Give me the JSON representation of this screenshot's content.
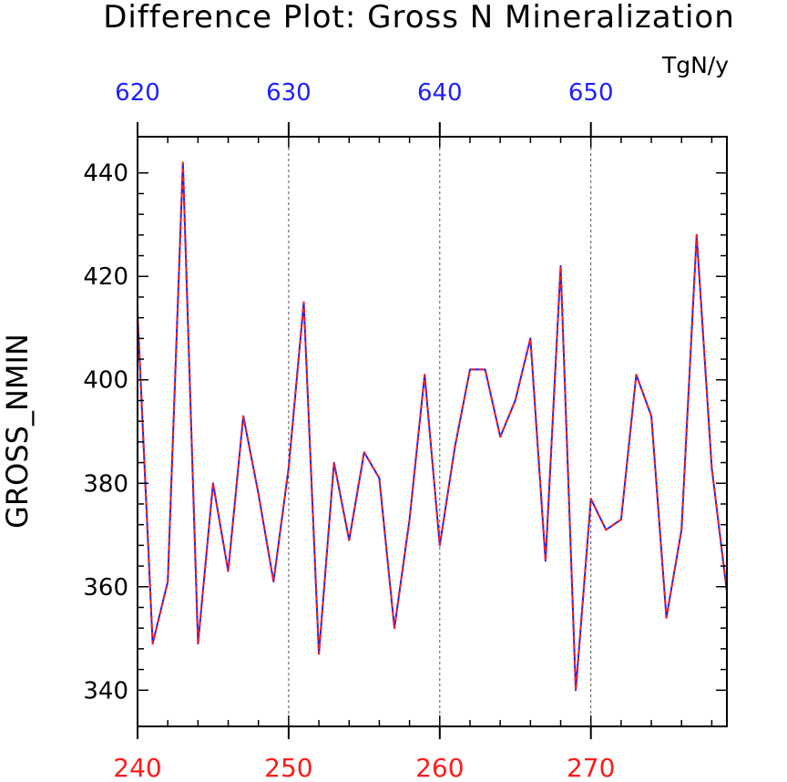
{
  "chart_data": {
    "type": "line",
    "title": "Difference Plot: Gross N Mineralization",
    "units": "TgN/y",
    "ylabel": "GROSS_NMIN",
    "xlabel": "",
    "xlim": [
      240,
      279
    ],
    "ylim": [
      333,
      447
    ],
    "x_ticks_bottom": [
      240,
      250,
      260,
      270
    ],
    "x_ticks_bottom_labels": [
      "240",
      "250",
      "260",
      "270"
    ],
    "x_ticks_top_offset": 380,
    "x_ticks_top_labels": [
      "620",
      "630",
      "640",
      "650"
    ],
    "y_ticks": [
      340,
      360,
      380,
      400,
      420,
      440
    ],
    "y_tick_labels": [
      "340",
      "360",
      "380",
      "400",
      "420",
      "440"
    ],
    "grid": "vertical dashed at major x ticks",
    "colors": {
      "series_a": "#1f1fff",
      "series_b": "#ff1a1a",
      "top_axis": "#1f1fff",
      "bottom_axis": "#ff1a1a"
    },
    "x": [
      240,
      241,
      242,
      243,
      244,
      245,
      246,
      247,
      248,
      249,
      250,
      251,
      252,
      253,
      254,
      255,
      256,
      257,
      258,
      259,
      260,
      261,
      262,
      263,
      264,
      265,
      266,
      267,
      268,
      269,
      270,
      271,
      272,
      273,
      274,
      275,
      276,
      277,
      278,
      279
    ],
    "series": [
      {
        "values": [
          413,
          349,
          361,
          442,
          349,
          380,
          363,
          393,
          378,
          361,
          383,
          415,
          347,
          384,
          369,
          386,
          381,
          352,
          373,
          401,
          368,
          387,
          402,
          402,
          389,
          396,
          408,
          365,
          422,
          340,
          377,
          371,
          373,
          401,
          393,
          354,
          371,
          428,
          383,
          359
        ]
      },
      {
        "values": [
          413,
          349,
          361,
          442,
          349,
          380,
          363,
          393,
          378,
          361,
          383,
          415,
          347,
          384,
          369,
          386,
          381,
          352,
          373,
          401,
          368,
          387,
          402,
          402,
          389,
          396,
          408,
          365,
          422,
          340,
          377,
          371,
          373,
          401,
          393,
          354,
          371,
          428,
          383,
          359
        ]
      }
    ]
  }
}
